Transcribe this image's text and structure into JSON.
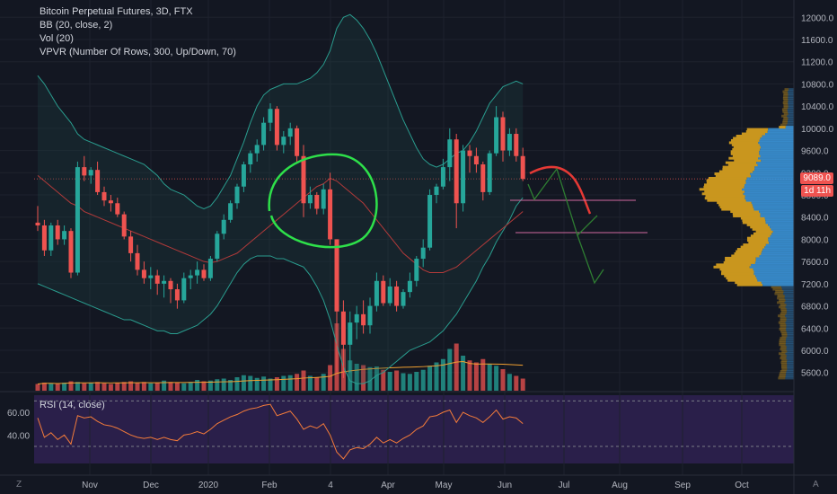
{
  "legend": {
    "title": "Bitcoin Perpetual Futures, 3D, FTX",
    "bb": "BB (20, close, 2)",
    "vol": "Vol (20)",
    "vpvr": "VPVR (Number Of Rows, 300, Up/Down, 70)"
  },
  "rsi_label": "RSI (14, close)",
  "price_tag": "9089.0",
  "timer_tag": "1d 11h",
  "corner_left": "Z",
  "corner_right": "A",
  "colors": {
    "bg": "#131722",
    "up": "#26a69a",
    "down": "#ef5350",
    "bb": "#2a9d8f",
    "basis": "#b23a3a",
    "vol_ma": "#f0a030",
    "rsi_bg": "#2a1f4a",
    "rsi_line": "#f57c3a",
    "vp_blue": "#3a8fd0",
    "vp_gold": "#c9961e",
    "annot_green": "#2ee04a",
    "annot_red": "#e53935",
    "arrow_green": "#2e7d32",
    "hline": "#d06aa0"
  },
  "chart_data": {
    "type": "candlestick",
    "y_ticks": [
      12000,
      11600,
      11200,
      10800,
      10400,
      10000,
      9600,
      9200,
      8800,
      8400,
      8000,
      7600,
      7200,
      6800,
      6400,
      6000,
      5600
    ],
    "y_tick_labels": [
      "12000.0",
      "11600.0",
      "11200.0",
      "10800.0",
      "10400.0",
      "10000.0",
      "9600.0",
      "9200.0",
      "8800.0",
      "8400.0",
      "8000.0",
      "7600.0",
      "7200.0",
      "6800.0",
      "6400.0",
      "6000.0",
      "5600.0"
    ],
    "ylim": [
      5450,
      12150
    ],
    "x_labels": [
      "Nov",
      "Dec",
      "2020",
      "Feb",
      "4",
      "Apr",
      "May",
      "Jun",
      "Jul",
      "Aug",
      "Sep",
      "Oct"
    ],
    "rsi_ticks": [
      "60.00",
      "40.00"
    ],
    "rsi_range": [
      15,
      75
    ],
    "candles": [
      [
        8300,
        8600,
        8150,
        8250
      ],
      [
        8250,
        8350,
        7700,
        7800
      ],
      [
        7800,
        8300,
        7700,
        8250
      ],
      [
        8250,
        8350,
        7900,
        8000
      ],
      [
        8000,
        8250,
        7900,
        8150
      ],
      [
        8150,
        8200,
        7300,
        7400
      ],
      [
        7400,
        9400,
        7350,
        9300
      ],
      [
        9300,
        9500,
        9050,
        9150
      ],
      [
        9150,
        9300,
        9000,
        9250
      ],
      [
        9250,
        9400,
        8800,
        8850
      ],
      [
        8850,
        8950,
        8600,
        8700
      ],
      [
        8700,
        8800,
        8500,
        8650
      ],
      [
        8650,
        8750,
        8400,
        8450
      ],
      [
        8450,
        8500,
        8000,
        8050
      ],
      [
        8050,
        8150,
        7600,
        7750
      ],
      [
        7750,
        7900,
        7350,
        7450
      ],
      [
        7450,
        7600,
        7200,
        7300
      ],
      [
        7300,
        7500,
        7100,
        7350
      ],
      [
        7350,
        7450,
        7000,
        7200
      ],
      [
        7200,
        7350,
        6950,
        7250
      ],
      [
        7250,
        7300,
        6850,
        7100
      ],
      [
        7100,
        7200,
        6750,
        6900
      ],
      [
        6900,
        7400,
        6850,
        7300
      ],
      [
        7300,
        7450,
        7100,
        7350
      ],
      [
        7350,
        7600,
        7200,
        7450
      ],
      [
        7450,
        7550,
        7250,
        7300
      ],
      [
        7300,
        7700,
        7250,
        7650
      ],
      [
        7650,
        8150,
        7600,
        8100
      ],
      [
        8100,
        8450,
        8000,
        8350
      ],
      [
        8350,
        8700,
        8300,
        8650
      ],
      [
        8650,
        9000,
        8550,
        8950
      ],
      [
        8950,
        9400,
        8850,
        9350
      ],
      [
        9350,
        9600,
        9200,
        9550
      ],
      [
        9550,
        9800,
        9400,
        9700
      ],
      [
        9700,
        10200,
        9600,
        10100
      ],
      [
        10100,
        10450,
        9950,
        10350
      ],
      [
        10350,
        10400,
        9600,
        9700
      ],
      [
        9700,
        9950,
        9550,
        9850
      ],
      [
        9850,
        10100,
        9700,
        10000
      ],
      [
        10000,
        10050,
        9400,
        9500
      ],
      [
        9500,
        9700,
        8400,
        8650
      ],
      [
        8650,
        8950,
        8550,
        8800
      ],
      [
        8800,
        8850,
        8450,
        8550
      ],
      [
        8550,
        9000,
        8450,
        8900
      ],
      [
        8900,
        9200,
        7900,
        8000
      ],
      [
        8000,
        8000,
        5600,
        6700
      ],
      [
        6700,
        6900,
        5500,
        6100
      ],
      [
        6100,
        6700,
        5600,
        6500
      ],
      [
        6500,
        6800,
        6200,
        6650
      ],
      [
        6650,
        6900,
        6300,
        6450
      ],
      [
        6450,
        6950,
        6300,
        6800
      ],
      [
        6800,
        7400,
        6700,
        7250
      ],
      [
        7250,
        7350,
        6800,
        6850
      ],
      [
        6850,
        7300,
        6800,
        7150
      ],
      [
        7150,
        7250,
        6700,
        6800
      ],
      [
        6800,
        7100,
        6750,
        7050
      ],
      [
        7050,
        7400,
        6950,
        7250
      ],
      [
        7250,
        7700,
        7150,
        7650
      ],
      [
        7650,
        8000,
        7500,
        7850
      ],
      [
        7850,
        8900,
        7800,
        8800
      ],
      [
        8800,
        9000,
        8650,
        8950
      ],
      [
        8950,
        9450,
        8900,
        9300
      ],
      [
        9300,
        10000,
        9050,
        9800
      ],
      [
        9800,
        9900,
        8200,
        8650
      ],
      [
        8650,
        9700,
        8500,
        9600
      ],
      [
        9600,
        9700,
        9200,
        9500
      ],
      [
        9500,
        9650,
        9200,
        9350
      ],
      [
        9350,
        9400,
        8700,
        8850
      ],
      [
        8850,
        9600,
        8800,
        9550
      ],
      [
        9550,
        10400,
        9500,
        10200
      ],
      [
        10200,
        10300,
        9400,
        9600
      ],
      [
        9600,
        10000,
        9500,
        9900
      ],
      [
        9900,
        10000,
        9400,
        9500
      ],
      [
        9500,
        9650,
        9050,
        9089
      ]
    ],
    "bb_upper": [
      10950,
      10800,
      10600,
      10400,
      10250,
      10100,
      9900,
      9800,
      9750,
      9700,
      9650,
      9600,
      9550,
      9500,
      9450,
      9400,
      9350,
      9250,
      9150,
      9000,
      8900,
      8850,
      8800,
      8700,
      8600,
      8550,
      8600,
      8750,
      8950,
      9150,
      9450,
      9750,
      10100,
      10400,
      10600,
      10700,
      10750,
      10800,
      10800,
      10800,
      10850,
      10900,
      11000,
      11150,
      11400,
      11800,
      12000,
      12050,
      11950,
      11800,
      11600,
      11350,
      11050,
      10750,
      10450,
      10150,
      9900,
      9650,
      9450,
      9350,
      9300,
      9350,
      9450,
      9550,
      9600,
      9750,
      9950,
      10200,
      10450,
      10600,
      10750,
      10800,
      10850,
      10800
    ],
    "bb_basis": [
      9150,
      9050,
      8950,
      8850,
      8750,
      8650,
      8600,
      8500,
      8450,
      8400,
      8350,
      8300,
      8250,
      8200,
      8150,
      8100,
      8050,
      8000,
      7950,
      7900,
      7850,
      7800,
      7750,
      7700,
      7650,
      7600,
      7580,
      7600,
      7650,
      7700,
      7750,
      7850,
      7950,
      8050,
      8150,
      8250,
      8350,
      8450,
      8550,
      8650,
      8750,
      8850,
      8950,
      9000,
      9100,
      9050,
      8950,
      8850,
      8750,
      8650,
      8500,
      8350,
      8200,
      8050,
      7900,
      7750,
      7650,
      7550,
      7450,
      7400,
      7400,
      7400,
      7450,
      7500,
      7600,
      7700,
      7800,
      7900,
      8000,
      8100,
      8200,
      8300,
      8400,
      8500
    ],
    "bb_lower": [
      7200,
      7150,
      7100,
      7050,
      7000,
      6950,
      6900,
      6850,
      6800,
      6750,
      6700,
      6650,
      6600,
      6550,
      6550,
      6500,
      6450,
      6400,
      6350,
      6350,
      6300,
      6300,
      6350,
      6400,
      6450,
      6550,
      6650,
      6800,
      7000,
      7200,
      7400,
      7550,
      7650,
      7700,
      7700,
      7700,
      7650,
      7650,
      7600,
      7550,
      7500,
      7350,
      7150,
      6900,
      6550,
      6100,
      5700,
      5450,
      5400,
      5400,
      5450,
      5550,
      5600,
      5700,
      5800,
      5900,
      6000,
      6050,
      6100,
      6150,
      6250,
      6350,
      6500,
      6650,
      6850,
      7050,
      7250,
      7500,
      7700,
      7950,
      8150,
      8350,
      8600,
      8750
    ],
    "volume": [
      0.1,
      0.12,
      0.11,
      0.1,
      0.12,
      0.14,
      0.13,
      0.11,
      0.12,
      0.13,
      0.11,
      0.1,
      0.12,
      0.13,
      0.14,
      0.12,
      0.13,
      0.11,
      0.12,
      0.15,
      0.13,
      0.12,
      0.11,
      0.13,
      0.16,
      0.14,
      0.15,
      0.17,
      0.18,
      0.16,
      0.2,
      0.23,
      0.22,
      0.19,
      0.21,
      0.18,
      0.2,
      0.22,
      0.23,
      0.25,
      0.3,
      0.22,
      0.2,
      0.25,
      0.38,
      1.0,
      0.62,
      0.45,
      0.4,
      0.38,
      0.35,
      0.36,
      0.31,
      0.28,
      0.3,
      0.26,
      0.25,
      0.28,
      0.31,
      0.37,
      0.42,
      0.47,
      0.62,
      0.7,
      0.52,
      0.45,
      0.42,
      0.47,
      0.4,
      0.37,
      0.32,
      0.25,
      0.22,
      0.18
    ],
    "rsi": [
      55,
      38,
      42,
      36,
      40,
      32,
      57,
      55,
      56,
      52,
      49,
      48,
      46,
      43,
      40,
      38,
      37,
      38,
      36,
      38,
      36,
      35,
      40,
      41,
      43,
      41,
      45,
      50,
      53,
      56,
      58,
      61,
      63,
      64,
      66,
      67,
      57,
      59,
      61,
      54,
      45,
      48,
      46,
      50,
      40,
      25,
      19,
      27,
      29,
      28,
      32,
      38,
      33,
      36,
      33,
      37,
      40,
      45,
      48,
      56,
      57,
      60,
      62,
      51,
      60,
      57,
      55,
      51,
      56,
      62,
      54,
      56,
      55,
      50
    ]
  }
}
